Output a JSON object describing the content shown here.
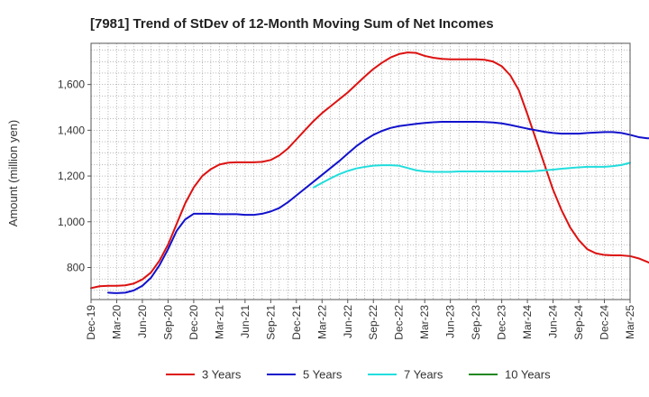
{
  "chart_data": {
    "type": "line",
    "title": "[7981]  Trend of StDev of 12-Month Moving Sum of Net Incomes",
    "ylabel": "Amount (million yen)",
    "xlabel": "",
    "ylim": [
      660,
      1780
    ],
    "yticks": [
      800,
      1000,
      1200,
      1400,
      1600
    ],
    "ytick_labels": [
      "800",
      "1,000",
      "1,200",
      "1,400",
      "1,600"
    ],
    "x_start": "2019-12",
    "x_end": "2025-03",
    "xtick_labels": [
      "Dec-19",
      "Mar-20",
      "Jun-20",
      "Sep-20",
      "Dec-20",
      "Mar-21",
      "Jun-21",
      "Sep-21",
      "Dec-21",
      "Mar-22",
      "Jun-22",
      "Sep-22",
      "Dec-22",
      "Mar-23",
      "Jun-23",
      "Sep-23",
      "Dec-23",
      "Mar-24",
      "Jun-24",
      "Sep-24",
      "Dec-24",
      "Mar-25"
    ],
    "grid": true,
    "legend_position": "bottom",
    "series": [
      {
        "name": "3 Years",
        "color": "#dd1111",
        "start": "2019-12",
        "values": [
          710,
          718,
          720,
          720,
          722,
          730,
          748,
          778,
          830,
          900,
          990,
          1080,
          1150,
          1200,
          1230,
          1250,
          1258,
          1260,
          1260,
          1260,
          1262,
          1270,
          1290,
          1320,
          1360,
          1400,
          1440,
          1475,
          1505,
          1535,
          1565,
          1600,
          1635,
          1668,
          1695,
          1718,
          1733,
          1740,
          1738,
          1725,
          1717,
          1712,
          1710,
          1710,
          1710,
          1710,
          1708,
          1700,
          1680,
          1640,
          1575,
          1470,
          1360,
          1250,
          1140,
          1050,
          975,
          920,
          880,
          862,
          855,
          853,
          853,
          850,
          840,
          825,
          808,
          795,
          792
        ]
      },
      {
        "name": "5 Years",
        "color": "#1111cc",
        "start": "2020-02",
        "values": [
          690,
          688,
          690,
          700,
          720,
          755,
          810,
          880,
          960,
          1010,
          1035,
          1035,
          1035,
          1033,
          1033,
          1033,
          1030,
          1030,
          1035,
          1045,
          1060,
          1085,
          1115,
          1145,
          1175,
          1205,
          1235,
          1265,
          1298,
          1330,
          1357,
          1380,
          1397,
          1410,
          1418,
          1423,
          1428,
          1432,
          1435,
          1437,
          1437,
          1437,
          1437,
          1437,
          1436,
          1434,
          1430,
          1423,
          1415,
          1407,
          1400,
          1393,
          1388,
          1385,
          1385,
          1385,
          1388,
          1390,
          1392,
          1392,
          1388,
          1380,
          1370,
          1365,
          1365,
          1375
        ]
      },
      {
        "name": "7 Years",
        "color": "#22dddd",
        "start": "2022-02",
        "values": [
          1150,
          1170,
          1190,
          1208,
          1222,
          1233,
          1240,
          1245,
          1247,
          1247,
          1245,
          1235,
          1225,
          1220,
          1218,
          1218,
          1218,
          1220,
          1220,
          1220,
          1220,
          1220,
          1220,
          1220,
          1220,
          1220,
          1222,
          1225,
          1228,
          1232,
          1235,
          1238,
          1240,
          1240,
          1240,
          1243,
          1248,
          1258
        ]
      },
      {
        "name": "10 Years",
        "color": "#228822",
        "start": "2019-12",
        "values": []
      }
    ]
  }
}
